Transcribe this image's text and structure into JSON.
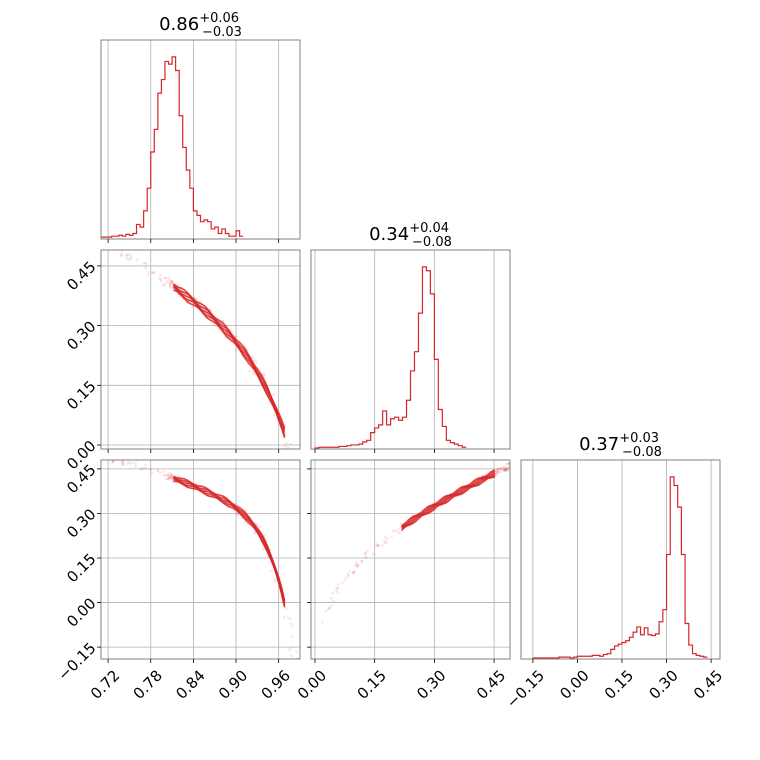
{
  "chart_data": {
    "type": "corner",
    "color": "#d62728",
    "grid": true,
    "parameters": [
      {
        "title_main": "0.86",
        "title_plus": "+0.06",
        "title_minus": "−0.03",
        "ticks": [
          0.72,
          0.78,
          0.84,
          0.9,
          0.96
        ],
        "tick_labels": [
          "0.72",
          "0.78",
          "0.84",
          "0.90",
          "0.96"
        ],
        "range": [
          0.71,
          0.99
        ]
      },
      {
        "title_main": "0.34",
        "title_plus": "+0.04",
        "title_minus": "−0.08",
        "ticks": [
          0.0,
          0.15,
          0.3,
          0.45
        ],
        "tick_labels": [
          "0.00",
          "0.15",
          "0.30",
          "0.45"
        ],
        "range": [
          -0.01,
          0.49
        ]
      },
      {
        "title_main": "0.37",
        "title_plus": "+0.03",
        "title_minus": "−0.08",
        "ticks": [
          -0.15,
          0.0,
          0.15,
          0.3,
          0.45
        ],
        "tick_labels": [
          "−0.15",
          "0.00",
          "0.15",
          "0.30",
          "0.45"
        ],
        "range": [
          -0.19,
          0.48
        ]
      }
    ],
    "histograms": [
      {
        "param": 0,
        "bin_start": 0.71,
        "bin_width": 0.005,
        "counts": [
          1,
          1,
          1,
          2,
          2,
          3,
          2,
          4,
          3,
          5,
          15,
          12,
          30,
          55,
          95,
          120,
          160,
          175,
          195,
          192,
          200,
          185,
          135,
          100,
          75,
          55,
          30,
          25,
          18,
          20,
          18,
          10,
          12,
          5,
          10,
          5,
          2,
          2,
          8,
          2
        ]
      },
      {
        "param": 1,
        "bin_start": 0.0,
        "bin_width": 0.01,
        "counts": [
          0,
          1,
          1,
          1,
          1,
          1,
          2,
          2,
          3,
          4,
          4,
          5,
          8,
          10,
          20,
          26,
          30,
          48,
          30,
          38,
          40,
          36,
          40,
          62,
          100,
          125,
          175,
          235,
          230,
          200,
          115,
          50,
          28,
          10,
          7,
          5,
          3,
          1
        ]
      },
      {
        "param": 2,
        "bin_start": -0.15,
        "bin_width": 0.0125,
        "counts": [
          0,
          0,
          0,
          0,
          0,
          0,
          0,
          1,
          1,
          1,
          0,
          1,
          2,
          2,
          2,
          2,
          3,
          3,
          2,
          4,
          5,
          10,
          14,
          16,
          18,
          20,
          24,
          30,
          36,
          27,
          35,
          27,
          26,
          28,
          42,
          56,
          120,
          210,
          200,
          175,
          120,
          40,
          15,
          5,
          3,
          2,
          1
        ]
      }
    ]
  }
}
